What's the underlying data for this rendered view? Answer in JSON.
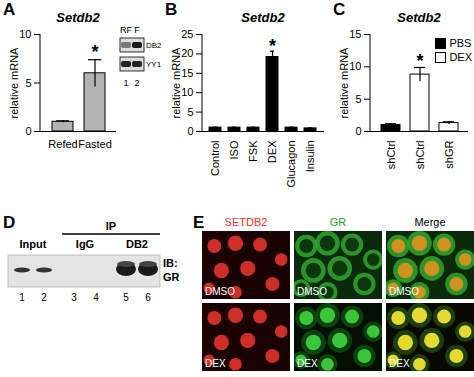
{
  "chart_data": [
    {
      "panel": "A",
      "type": "bar",
      "title": "Setdb2",
      "y_label": "relative mRNA",
      "categories": [
        "Refed",
        "Fasted"
      ],
      "values": [
        1,
        6
      ],
      "errors": [
        0.1,
        1.4
      ],
      "color": "#b3b3b3",
      "ylim": [
        0,
        10
      ],
      "yticks": [
        0,
        5,
        10
      ],
      "annotations": [
        {
          "text": "*",
          "position": 1,
          "y": 8.2
        }
      ]
    },
    {
      "panel": "B",
      "type": "bar",
      "title": "Setdb2",
      "y_label": "relative mRNA",
      "categories": [
        "Control",
        "ISO",
        "FSK",
        "DEX",
        "Glucagon",
        "Insulin"
      ],
      "values": [
        1,
        1,
        1,
        19.2,
        1,
        0.8
      ],
      "errors": [
        0.1,
        0.1,
        0.1,
        1.5,
        0.1,
        0.1
      ],
      "color": "#000000",
      "ylim": [
        0,
        25
      ],
      "yticks": [
        0,
        5,
        10,
        15,
        20,
        25
      ],
      "annotations": [
        {
          "text": "*",
          "position": 3,
          "y": 22
        }
      ]
    },
    {
      "panel": "C",
      "type": "bar",
      "title": "Setdb2",
      "y_label": "relative mRNA",
      "categories": [
        "shCtrl",
        "shCtrl",
        "shGR"
      ],
      "series": [
        {
          "name": "PBS",
          "color": "#000000",
          "values": [
            1,
            null,
            null
          ],
          "errors": [
            0.2,
            null,
            null
          ]
        },
        {
          "name": "DEX",
          "color": "#ffffff",
          "values": [
            null,
            8.8,
            1.3
          ],
          "errors": [
            null,
            1.1,
            0.2
          ]
        }
      ],
      "ylim": [
        0,
        15
      ],
      "yticks": [
        0,
        5,
        10,
        15
      ],
      "legend": "top-right",
      "annotations": [
        {
          "text": "*",
          "position": 1,
          "y": 10.8
        }
      ]
    }
  ],
  "inset_blot": {
    "lanes": [
      "RF",
      "F"
    ],
    "rows": [
      "DB2",
      "YY1"
    ],
    "lane_numbers": [
      "1",
      "2"
    ]
  },
  "ip_blot": {
    "panel": "D",
    "headers": [
      "Input",
      "IgG",
      "DB2"
    ],
    "group_label": "IP",
    "probe": [
      "IB:",
      "GR"
    ],
    "lane_numbers": [
      "1",
      "2",
      "3",
      "4",
      "5",
      "6"
    ]
  },
  "micrographs": {
    "panel": "E",
    "columns": [
      {
        "label": "SETDB2",
        "color": "#e8322d"
      },
      {
        "label": "GR",
        "color": "#2aa02a"
      },
      {
        "label": "Merge",
        "color": "#000000"
      }
    ],
    "rows": [
      "DMSO",
      "DEX"
    ]
  }
}
